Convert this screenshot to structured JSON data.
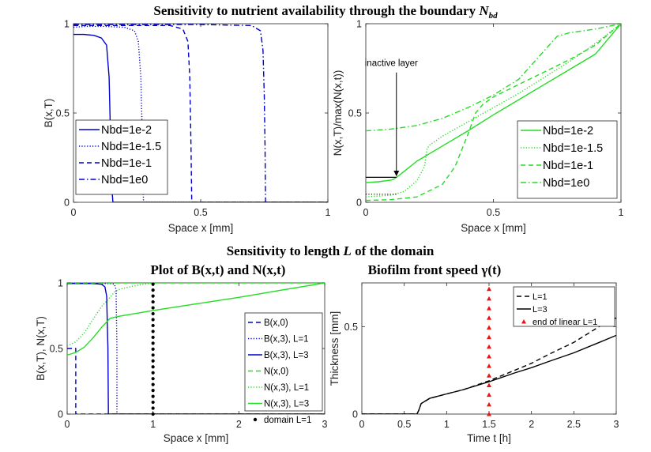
{
  "figure": {
    "title_top_main": "Sensitivity to nutrient availability through the boundary",
    "title_top_sym": "N",
    "title_top_sub": "bd",
    "title_mid": "Sensitivity to length",
    "title_mid_sym": "L",
    "title_mid_tail": "of the domain"
  },
  "chart_data": [
    {
      "id": "p1",
      "type": "line",
      "title": "",
      "xlabel": "Space x [mm]",
      "ylabel": "B(x,T)",
      "xlim": [
        0,
        1
      ],
      "ylim": [
        0,
        1
      ],
      "xticks": [
        0,
        0.5,
        1
      ],
      "xticklabels": [
        "0",
        "0.5",
        "1"
      ],
      "yticks": [
        0,
        0.5,
        1
      ],
      "yticklabels": [
        "0",
        "0.5",
        "1"
      ],
      "legend_position": "bottom-left",
      "series": [
        {
          "name": "Nbd=1e-2",
          "color": "#0000cc",
          "dash": "solid",
          "x": [
            0,
            0.04,
            0.08,
            0.11,
            0.13,
            0.14,
            0.145,
            0.15,
            0.155,
            1
          ],
          "y": [
            0.94,
            0.94,
            0.935,
            0.92,
            0.88,
            0.7,
            0.4,
            0.1,
            0,
            0
          ]
        },
        {
          "name": "Nbd=1e-1.5",
          "color": "#0000cc",
          "dash": "dot",
          "x": [
            0,
            0.05,
            0.12,
            0.2,
            0.24,
            0.255,
            0.265,
            0.27,
            0.275,
            1
          ],
          "y": [
            0.98,
            0.985,
            0.985,
            0.98,
            0.96,
            0.9,
            0.7,
            0.4,
            0,
            0
          ]
        },
        {
          "name": "Nbd=1e-1",
          "color": "#0000cc",
          "dash": "dash",
          "x": [
            0,
            0.1,
            0.25,
            0.38,
            0.43,
            0.45,
            0.457,
            0.462,
            0.465,
            1
          ],
          "y": [
            0.99,
            0.99,
            0.99,
            0.99,
            0.97,
            0.9,
            0.7,
            0.3,
            0,
            0
          ]
        },
        {
          "name": "Nbd=1e0",
          "color": "#0000cc",
          "dash": "dashdot",
          "x": [
            0,
            0.2,
            0.5,
            0.7,
            0.735,
            0.745,
            0.75,
            0.753,
            0.755,
            1
          ],
          "y": [
            0.995,
            0.995,
            0.995,
            0.99,
            0.96,
            0.85,
            0.6,
            0.3,
            0,
            0
          ]
        }
      ],
      "annotations": []
    },
    {
      "id": "p2",
      "type": "line",
      "title": "",
      "xlabel": "Space x [mm]",
      "ylabel": "N(x,T)/max(N(x,t))",
      "xlim": [
        0,
        1
      ],
      "ylim": [
        0,
        1
      ],
      "xticks": [
        0,
        0.5,
        1
      ],
      "xticklabels": [
        "0",
        "0.5",
        "1"
      ],
      "yticks": [
        0,
        0.5,
        1
      ],
      "yticklabels": [
        "0",
        "0.5",
        "1"
      ],
      "legend_position": "bottom-right",
      "series": [
        {
          "name": "Nbd=1e-2",
          "color": "#22dd22",
          "dash": "solid",
          "x": [
            0,
            0.05,
            0.1,
            0.11,
            0.12,
            0.13,
            0.2,
            0.3,
            0.4,
            0.5,
            0.6,
            0.7,
            0.8,
            0.9,
            1
          ],
          "y": [
            0.11,
            0.115,
            0.125,
            0.13,
            0.14,
            0.15,
            0.23,
            0.315,
            0.4,
            0.49,
            0.575,
            0.66,
            0.745,
            0.83,
            1.0
          ]
        },
        {
          "name": "Nbd=1e-1.5",
          "color": "#22dd22",
          "dash": "dot",
          "x": [
            0,
            0.1,
            0.15,
            0.2,
            0.23,
            0.24,
            0.25,
            0.3,
            0.4,
            0.5,
            0.6,
            0.7,
            0.8,
            0.9,
            1
          ],
          "y": [
            0.03,
            0.04,
            0.06,
            0.12,
            0.2,
            0.3,
            0.32,
            0.37,
            0.45,
            0.53,
            0.61,
            0.7,
            0.79,
            0.89,
            1.0
          ]
        },
        {
          "name": "Nbd=1e-1",
          "color": "#22dd22",
          "dash": "dash",
          "x": [
            0,
            0.1,
            0.2,
            0.3,
            0.35,
            0.4,
            0.43,
            0.46,
            0.5,
            0.6,
            0.7,
            0.8,
            0.9,
            1
          ],
          "y": [
            0.01,
            0.015,
            0.03,
            0.1,
            0.2,
            0.38,
            0.5,
            0.55,
            0.59,
            0.66,
            0.73,
            0.8,
            0.88,
            1.0
          ]
        },
        {
          "name": "Nbd=1e0",
          "color": "#22dd22",
          "dash": "dashdot",
          "x": [
            0,
            0.1,
            0.2,
            0.3,
            0.4,
            0.5,
            0.6,
            0.7,
            0.75,
            0.8,
            0.9,
            1
          ],
          "y": [
            0.4,
            0.41,
            0.43,
            0.47,
            0.53,
            0.6,
            0.69,
            0.85,
            0.93,
            0.95,
            0.97,
            1.0
          ]
        }
      ],
      "annotations": [
        {
          "text": "inactive layer",
          "x": 0.12,
          "y": 0.78,
          "arrow_to": [
            0.12,
            0.14
          ]
        }
      ],
      "extra_black": [
        {
          "x": [
            0,
            0.12
          ],
          "y": [
            0.14,
            0.14
          ],
          "dash": "solid"
        },
        {
          "x": [
            0,
            0.12
          ],
          "y": [
            0.045,
            0.045
          ],
          "dash": "dot"
        }
      ]
    },
    {
      "id": "p3",
      "type": "line",
      "title": "Plot of B(x,t) and N(x,t)",
      "xlabel": "Space x [mm]",
      "ylabel": "B(x,T), N(x,T)",
      "xlim": [
        0,
        3
      ],
      "ylim": [
        0,
        1
      ],
      "xticks": [
        0,
        1,
        2,
        3
      ],
      "xticklabels": [
        "0",
        "1",
        "2",
        "3"
      ],
      "yticks": [
        0,
        0.5,
        1
      ],
      "yticklabels": [
        "0",
        "0.5",
        "1"
      ],
      "legend_position": "bottom-right",
      "series": [
        {
          "name": "B(x,0)",
          "color": "#0000cc",
          "dash": "dash",
          "x": [
            0,
            0.1,
            0.1,
            3
          ],
          "y": [
            0.5,
            0.5,
            0,
            0
          ]
        },
        {
          "name": "B(x,3), L=1",
          "color": "#0000cc",
          "dash": "dot",
          "x": [
            0,
            0.4,
            0.5,
            0.55,
            0.57,
            0.58,
            0.58,
            3
          ],
          "y": [
            0.995,
            0.995,
            0.995,
            0.99,
            0.95,
            0.5,
            0,
            0
          ]
        },
        {
          "name": "B(x,3), L=3",
          "color": "#0000cc",
          "dash": "solid",
          "x": [
            0,
            0.3,
            0.4,
            0.44,
            0.46,
            0.475,
            0.48,
            3
          ],
          "y": [
            0.995,
            0.995,
            0.99,
            0.97,
            0.9,
            0.5,
            0,
            0
          ]
        },
        {
          "name": "N(x,0)",
          "color": "#22dd22",
          "dash": "dash",
          "x": [
            0,
            1,
            3
          ],
          "y": [
            1,
            1,
            1
          ]
        },
        {
          "name": "N(x,3), L=1",
          "color": "#22dd22",
          "dash": "dot",
          "x": [
            0,
            0.1,
            0.2,
            0.3,
            0.4,
            0.5,
            0.55,
            0.6,
            0.7,
            0.8,
            0.9,
            1.0
          ],
          "y": [
            0.52,
            0.55,
            0.62,
            0.72,
            0.82,
            0.89,
            0.93,
            0.95,
            0.965,
            0.98,
            0.99,
            1.0
          ]
        },
        {
          "name": "N(x,3), L=3",
          "color": "#22dd22",
          "dash": "solid",
          "x": [
            0,
            0.1,
            0.2,
            0.3,
            0.4,
            0.5,
            0.6,
            1.0,
            1.5,
            2.0,
            2.5,
            3.0
          ],
          "y": [
            0.45,
            0.47,
            0.51,
            0.58,
            0.66,
            0.73,
            0.745,
            0.79,
            0.84,
            0.89,
            0.945,
            1.0
          ]
        }
      ],
      "markers": {
        "name": "domain L=1",
        "color": "#000000",
        "x": 1.0,
        "y": [
          0,
          0.045,
          0.09,
          0.135,
          0.18,
          0.225,
          0.27,
          0.315,
          0.36,
          0.405,
          0.45,
          0.495,
          0.54,
          0.585,
          0.63,
          0.675,
          0.72,
          0.765,
          0.81,
          0.855,
          0.9,
          0.945,
          0.99
        ]
      }
    },
    {
      "id": "p4",
      "type": "line",
      "title": "Biofilm front speed γ(t)",
      "xlabel": "Time t [h]",
      "ylabel": "Thickness [mm]",
      "xlim": [
        0,
        3
      ],
      "ylim": [
        0,
        0.75
      ],
      "xticks": [
        0,
        0.5,
        1,
        1.5,
        2,
        2.5,
        3
      ],
      "xticklabels": [
        "0",
        "0.5",
        "1",
        "1.5",
        "2",
        "2.5",
        "3"
      ],
      "yticks": [
        0,
        0.5
      ],
      "yticklabels": [
        "0",
        "0.5"
      ],
      "legend_position": "top-right",
      "series": [
        {
          "name": "L=1",
          "color": "#000000",
          "dash": "dash",
          "x": [
            0,
            0.6,
            0.65,
            0.67,
            0.7,
            0.8,
            1.0,
            1.2,
            1.5,
            1.8,
            2.0,
            2.2,
            2.5,
            2.8,
            3.0
          ],
          "y": [
            0,
            0,
            0,
            0.02,
            0.06,
            0.09,
            0.115,
            0.14,
            0.19,
            0.25,
            0.29,
            0.34,
            0.41,
            0.5,
            0.55
          ]
        },
        {
          "name": "L=3",
          "color": "#000000",
          "dash": "solid",
          "x": [
            0,
            0.6,
            0.65,
            0.67,
            0.7,
            0.8,
            1.0,
            1.2,
            1.5,
            1.8,
            2.0,
            2.2,
            2.5,
            2.8,
            3.0
          ],
          "y": [
            0,
            0,
            0,
            0.02,
            0.06,
            0.09,
            0.115,
            0.14,
            0.185,
            0.235,
            0.265,
            0.3,
            0.35,
            0.41,
            0.45
          ]
        }
      ],
      "markers": {
        "name": "end of linear L=1",
        "color": "#ee1111",
        "x": 1.5,
        "y": [
          0,
          0.055,
          0.11,
          0.165,
          0.22,
          0.275,
          0.33,
          0.385,
          0.44,
          0.495,
          0.55,
          0.605,
          0.66,
          0.715
        ]
      }
    }
  ]
}
